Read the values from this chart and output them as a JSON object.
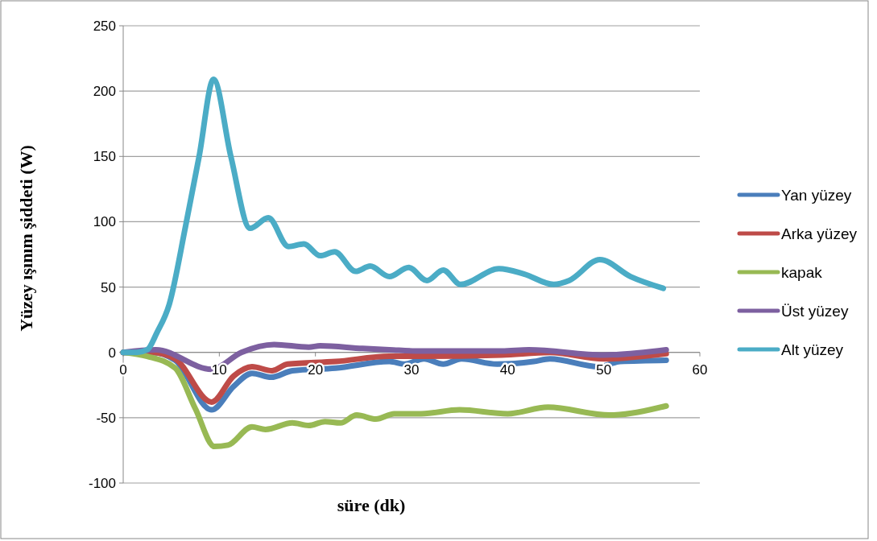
{
  "chart_data": {
    "type": "line",
    "xlabel": "süre (dk)",
    "ylabel": "Yüzey ışınım şiddeti (W)",
    "xlim": [
      0,
      60
    ],
    "xticks": [
      0,
      10,
      20,
      30,
      40,
      50,
      60
    ],
    "ylim": [
      -100,
      250
    ],
    "yticks": [
      -100,
      -50,
      0,
      50,
      100,
      150,
      200,
      250
    ],
    "grid": "y",
    "legend": "right",
    "series": [
      {
        "name": "Yan yüzey",
        "color": "#4a7ebb",
        "x": [
          0,
          3,
          5.4,
          9.2,
          11.5,
          13.4,
          15.4,
          17.6,
          22.1,
          27.7,
          29.3,
          31.3,
          33.3,
          35.2,
          38.9,
          42.7,
          44.4,
          49.5,
          51.7,
          56.5
        ],
        "values": [
          0,
          0,
          -6,
          -44,
          -26,
          -16,
          -19,
          -14,
          -12,
          -7,
          -9,
          -5,
          -9,
          -5,
          -9,
          -7,
          -5,
          -11,
          -7,
          -6
        ]
      },
      {
        "name": "Arka yüzey",
        "color": "#be4b48",
        "x": [
          0,
          3,
          5.4,
          9.2,
          11.5,
          13.4,
          15.5,
          17.1,
          22.1,
          27.7,
          31,
          39.4,
          44.4,
          50,
          56.5
        ],
        "values": [
          0,
          0,
          -5,
          -38,
          -18,
          -11,
          -14,
          -9,
          -7,
          -3,
          -3,
          -2,
          0,
          -5,
          -1
        ]
      },
      {
        "name": "kapak",
        "color": "#98b954",
        "x": [
          0,
          2.5,
          5.4,
          7.5,
          9.5,
          10.9,
          13.4,
          14.8,
          17.6,
          19.3,
          21,
          22.6,
          24.3,
          26.3,
          28.2,
          31,
          35,
          40,
          44.2,
          50.6,
          56.5
        ],
        "values": [
          0,
          -3,
          -12,
          -43,
          -72,
          -71,
          -57,
          -59,
          -54,
          -56,
          -53,
          -54,
          -48,
          -51,
          -47,
          -47,
          -44,
          -47,
          -42,
          -48,
          -41
        ]
      },
      {
        "name": "Üst yüzey",
        "color": "#7d60a0",
        "x": [
          0,
          3.4,
          9.2,
          12.3,
          15.7,
          19.3,
          20.5,
          24.9,
          27.7,
          31,
          39.4,
          42.2,
          50,
          56.5
        ],
        "values": [
          0,
          2,
          -13,
          0,
          6,
          4,
          5,
          3,
          2,
          1,
          1,
          2,
          -2,
          2
        ]
      },
      {
        "name": "Alt yüzey",
        "color": "#4bacc6",
        "x": [
          0,
          1.4,
          2.5,
          3.5,
          4.8,
          6.5,
          7.9,
          9.4,
          11.2,
          13.2,
          15.1,
          17.2,
          18.8,
          20.5,
          22,
          24.2,
          25.7,
          27.7,
          29.7,
          31.6,
          33.3,
          35.1,
          39.1,
          41.7,
          44.8,
          46.4,
          49.6,
          52.8,
          56.2
        ],
        "values": [
          0,
          0,
          2,
          15,
          37,
          97,
          150,
          209,
          150,
          95,
          103,
          81,
          83,
          74,
          77,
          62,
          66,
          58,
          65,
          55,
          63,
          52,
          64,
          60,
          52,
          55,
          71,
          58,
          49
        ]
      }
    ]
  }
}
